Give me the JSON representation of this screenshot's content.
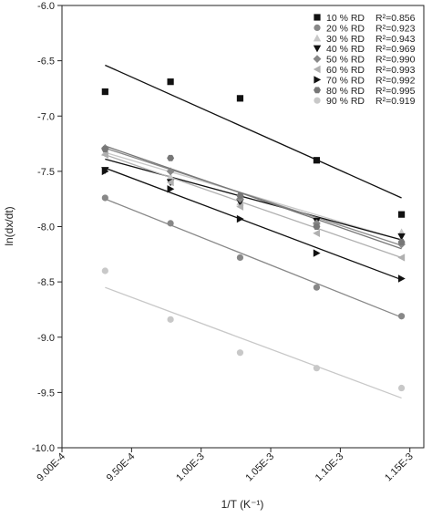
{
  "chart_data": {
    "type": "scatter",
    "xlabel": "1/T (K⁻¹)",
    "ylabel": "ln(dx/dt)",
    "xlim": [
      0.0009,
      0.00116
    ],
    "ylim": [
      -10.0,
      -6.0
    ],
    "x_ticks": [
      0.0009,
      0.00095,
      0.001,
      0.00105,
      0.0011,
      0.00115
    ],
    "x_tick_labels": [
      "9.00E-4",
      "9.50E-4",
      "1.00E-3",
      "1.05E-3",
      "1.10E-3",
      "1.15E-3"
    ],
    "y_ticks": [
      -6.0,
      -6.5,
      -7.0,
      -7.5,
      -8.0,
      -8.5,
      -9.0,
      -9.5,
      -10.0
    ],
    "y_tick_labels": [
      "-6.0",
      "-6.5",
      "-7.0",
      "-7.5",
      "-8.0",
      "-8.5",
      "-9.0",
      "-9.5",
      "-10.0"
    ],
    "legend_position": "top-right",
    "grid": false,
    "x": [
      0.000931,
      0.000978,
      0.001028,
      0.001083,
      0.001144
    ],
    "series": [
      {
        "name": "10 % RD",
        "r2_label": "R²=0.856",
        "marker": "square",
        "color": "#111111",
        "values": [
          -6.78,
          -6.69,
          -6.84,
          -7.4,
          -7.89
        ],
        "fit": [
          -6.54,
          -7.74
        ]
      },
      {
        "name": "20 % RD",
        "r2_label": "R²=0.923",
        "marker": "circle",
        "color": "#888888",
        "values": [
          -7.74,
          -7.97,
          -8.28,
          -8.55,
          -8.81
        ],
        "fit": [
          -7.75,
          -8.82
        ]
      },
      {
        "name": "30 % RD",
        "r2_label": "R²=0.943",
        "marker": "triangle-up",
        "color": "#c8c8c8",
        "values": [
          -7.33,
          -7.55,
          -7.78,
          -7.96,
          -8.05
        ],
        "fit": [
          -7.33,
          -8.12
        ]
      },
      {
        "name": "40 % RD",
        "r2_label": "R²=0.969",
        "marker": "triangle-down",
        "color": "#111111",
        "values": [
          -7.49,
          -7.6,
          -7.78,
          -7.95,
          -8.09
        ],
        "fit": [
          -7.39,
          -8.12
        ]
      },
      {
        "name": "50 % RD",
        "r2_label": "R²=0.990",
        "marker": "diamond",
        "color": "#888888",
        "values": [
          -7.29,
          -7.5,
          -7.75,
          -7.97,
          -8.16
        ],
        "fit": [
          -7.29,
          -8.17
        ]
      },
      {
        "name": "60 % RD",
        "r2_label": "R²=0.993",
        "marker": "triangle-left",
        "color": "#b0b0b0",
        "values": [
          -7.35,
          -7.6,
          -7.82,
          -8.06,
          -8.28
        ],
        "fit": [
          -7.35,
          -8.28
        ]
      },
      {
        "name": "70 % RD",
        "r2_label": "R²=0.992",
        "marker": "triangle-right",
        "color": "#111111",
        "values": [
          -7.5,
          -7.66,
          -7.93,
          -8.24,
          -8.47
        ],
        "fit": [
          -7.47,
          -8.48
        ]
      },
      {
        "name": "80 % RD",
        "r2_label": "R²=0.995",
        "marker": "hexagon",
        "color": "#777777",
        "values": [
          -7.3,
          -7.38,
          -7.72,
          -8.0,
          -8.14
        ],
        "fit": [
          -7.27,
          -8.2
        ]
      },
      {
        "name": "90 % RD",
        "r2_label": "R²=0.919",
        "marker": "circle",
        "color": "#c8c8c8",
        "values": [
          -8.4,
          -8.84,
          -9.14,
          -9.28,
          -9.46
        ],
        "fit": [
          -8.55,
          -9.55
        ]
      }
    ]
  }
}
